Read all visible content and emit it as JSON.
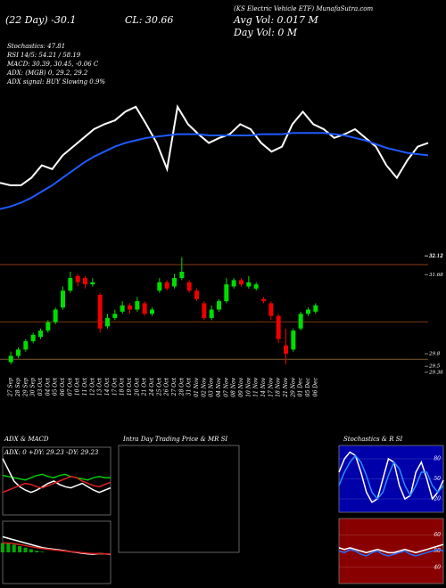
{
  "header": {
    "lines": [
      "(22 Day) -30.1",
      "CL: 30.66",
      "Avg Vol: 0.017 M",
      "Day Vol: 0 M",
      "Stochastics: 47.81",
      "RSI 14/5: 54.21 / 58.19",
      "MACD: 30.39, 30.45, -0.06 C",
      "ADX: (MGB) 0, 29.2, 29.2",
      "ADX signal: BUY Slowing 0.9%",
      "(KS Electric Vehicle ETF) MunafaSutra.com"
    ]
  },
  "chart_data": [
    {
      "type": "candlestick",
      "categories": [
        "27 Sep",
        "28 Sep",
        "29 Sep",
        "30 Sep",
        "03 Oct",
        "04 Oct",
        "05 Oct",
        "06 Oct",
        "07 Oct",
        "10 Oct",
        "11 Oct",
        "12 Oct",
        "13 Oct",
        "14 Oct",
        "17 Oct",
        "18 Oct",
        "19 Oct",
        "20 Oct",
        "21 Oct",
        "24 Oct",
        "25 Oct",
        "26 Oct",
        "27 Oct",
        "28 Oct",
        "31 Oct",
        "01 Nov",
        "02 Nov",
        "03 Nov",
        "04 Nov",
        "07 Nov",
        "08 Nov",
        "09 Nov",
        "10 Nov",
        "11 Nov",
        "14 Nov",
        "17 Nov",
        "18 Nov",
        "21 Nov",
        "29 Nov",
        "01 Dec",
        "05 Dec",
        "06 Dec"
      ],
      "open": [
        29.6,
        29.75,
        29.9,
        30.1,
        30.2,
        30.35,
        30.55,
        30.9,
        31.3,
        31.65,
        31.6,
        31.45,
        31.2,
        30.45,
        30.65,
        30.8,
        30.95,
        30.85,
        31.0,
        30.75,
        31.3,
        31.5,
        31.4,
        31.6,
        31.5,
        31.3,
        31.0,
        30.65,
        30.85,
        31.05,
        31.4,
        31.55,
        31.4,
        31.35,
        31.1,
        31.0,
        30.7,
        30.0,
        29.9,
        30.4,
        30.75,
        30.8
      ],
      "high": [
        29.85,
        29.95,
        30.15,
        30.3,
        30.4,
        30.6,
        30.9,
        31.4,
        31.75,
        31.7,
        31.65,
        31.6,
        31.25,
        30.75,
        30.85,
        31.05,
        31.0,
        31.15,
        31.05,
        30.9,
        31.6,
        31.55,
        31.7,
        32.1,
        31.55,
        31.35,
        31.05,
        30.95,
        31.1,
        31.6,
        31.6,
        31.6,
        31.65,
        31.5,
        31.15,
        31.05,
        30.75,
        30.4,
        30.4,
        30.8,
        30.9,
        31.0
      ],
      "low": [
        29.55,
        29.7,
        29.85,
        30.05,
        30.15,
        30.3,
        30.5,
        30.85,
        31.25,
        31.4,
        31.35,
        31.4,
        30.3,
        30.4,
        30.6,
        30.75,
        30.75,
        30.8,
        30.7,
        30.7,
        31.25,
        31.3,
        31.35,
        31.55,
        31.25,
        31.05,
        30.6,
        30.6,
        30.8,
        31.0,
        31.35,
        31.4,
        31.35,
        31.3,
        31.0,
        30.6,
        30.05,
        29.55,
        29.85,
        30.35,
        30.7,
        30.75
      ],
      "close": [
        29.75,
        29.9,
        30.1,
        30.25,
        30.35,
        30.55,
        30.85,
        31.3,
        31.6,
        31.5,
        31.45,
        31.5,
        30.4,
        30.65,
        30.75,
        30.95,
        30.85,
        31.05,
        30.75,
        30.85,
        31.5,
        31.35,
        31.6,
        31.75,
        31.3,
        31.1,
        30.65,
        30.85,
        31.05,
        31.45,
        31.55,
        31.45,
        31.5,
        31.45,
        31.05,
        30.7,
        30.15,
        29.8,
        30.35,
        30.75,
        30.85,
        30.95
      ],
      "up_color": "#00dd00",
      "down_color": "#ee0000",
      "ylim": [
        29.42,
        32.28
      ],
      "yticks": [
        32.13,
        32.12,
        31.68,
        29.8,
        29.5,
        29.36
      ],
      "levels": [
        {
          "value": 31.92,
          "color": "#8b3a1a"
        },
        {
          "value": 30.56,
          "color": "#7a3b10"
        },
        {
          "value": 29.67,
          "color": "#7a5a30"
        }
      ]
    },
    {
      "type": "line",
      "ylim": [
        0,
        100
      ],
      "series": [
        {
          "color": "#ffffff",
          "values": [
            32,
            30,
            30,
            36,
            46,
            43,
            54,
            61,
            68,
            75,
            79,
            82,
            89,
            93,
            79,
            64,
            43,
            93,
            79,
            71,
            64,
            68,
            71,
            79,
            75,
            64,
            57,
            61,
            79,
            89,
            79,
            75,
            68,
            71,
            75,
            68,
            61,
            46,
            36,
            50,
            61,
            64
          ]
        },
        {
          "color": "#1e5aff",
          "values": [
            11,
            13,
            16,
            20,
            25,
            30,
            36,
            42,
            48,
            53,
            57,
            61,
            64,
            66,
            68,
            69,
            70,
            71,
            71,
            71,
            70,
            70,
            70,
            70,
            70,
            71,
            71,
            71,
            72,
            72,
            72,
            72,
            71,
            70,
            68,
            66,
            63,
            60,
            58,
            56,
            55,
            54
          ]
        }
      ]
    },
    {
      "type": "line",
      "title": "ADX & MACD",
      "subtitle": "ADX: 0 +DY: 29.23 -DY: 29.23",
      "ylim": [
        0,
        60
      ],
      "background": "#000000",
      "series": [
        {
          "color": "#00cc00",
          "values": [
            35,
            34,
            33,
            32,
            31,
            33,
            35,
            36,
            34,
            33,
            35,
            36,
            34,
            33,
            32,
            31,
            33,
            34,
            33,
            33
          ]
        },
        {
          "color": "#ffffff",
          "values": [
            50,
            40,
            30,
            25,
            22,
            20,
            22,
            25,
            28,
            30,
            27,
            25,
            24,
            26,
            28,
            25,
            22,
            20,
            22,
            24
          ]
        },
        {
          "color": "#dd2222",
          "values": [
            20,
            22,
            24,
            26,
            28,
            27,
            25,
            24,
            26,
            28,
            30,
            32,
            34,
            33,
            30,
            28,
            26,
            25,
            27,
            29
          ]
        }
      ]
    },
    {
      "type": "macd",
      "ylim": [
        -1,
        1
      ],
      "background": "#000000",
      "hist_color": "#00aa00",
      "histogram": [
        0.3,
        0.3,
        0.25,
        0.2,
        0.15,
        0.1,
        0.05,
        0.02,
        0,
        0,
        0,
        0,
        0,
        0,
        0,
        0,
        0,
        0,
        0,
        0
      ],
      "series": [
        {
          "color": "#ffffff",
          "values": [
            0.5,
            0.45,
            0.4,
            0.35,
            0.3,
            0.25,
            0.2,
            0.15,
            0.12,
            0.1,
            0.08,
            0.05,
            0.02,
            0,
            -0.03,
            -0.05,
            -0.06,
            -0.04,
            -0.05,
            -0.06
          ]
        },
        {
          "color": "#dd2222",
          "values": [
            0.3,
            0.3,
            0.28,
            0.25,
            0.22,
            0.18,
            0.15,
            0.12,
            0.1,
            0.08,
            0.06,
            0.04,
            0.02,
            0.01,
            -0.01,
            -0.03,
            -0.04,
            -0.04,
            -0.05,
            -0.05
          ]
        }
      ]
    },
    {
      "type": "empty",
      "title": "Intra Day Trading Price & MR SI",
      "background": "#000000"
    },
    {
      "type": "line",
      "title": "Stochastics & R SI",
      "ylim": [
        0,
        100
      ],
      "yticks": [
        80,
        50,
        20
      ],
      "background": "#0000aa",
      "series": [
        {
          "color": "#ffffff",
          "values": [
            60,
            80,
            90,
            85,
            60,
            30,
            15,
            20,
            50,
            80,
            75,
            40,
            20,
            25,
            60,
            75,
            50,
            20,
            30,
            48
          ]
        },
        {
          "color": "#2a8cff",
          "values": [
            40,
            60,
            75,
            85,
            75,
            55,
            30,
            20,
            30,
            55,
            75,
            65,
            40,
            25,
            40,
            60,
            60,
            40,
            30,
            40
          ]
        }
      ]
    },
    {
      "type": "line",
      "ylim": [
        30,
        70
      ],
      "yticks": [
        60,
        50,
        40
      ],
      "background": "#880000",
      "series": [
        {
          "color": "#2a6cff",
          "values": [
            50,
            49,
            51,
            50,
            48,
            47,
            49,
            50,
            48,
            47,
            48,
            49,
            50,
            48,
            47,
            48,
            49,
            50,
            51,
            50
          ]
        },
        {
          "color": "#ffffff",
          "values": [
            52,
            51,
            52,
            51,
            50,
            49,
            50,
            51,
            50,
            49,
            49,
            50,
            51,
            50,
            49,
            50,
            51,
            52,
            53,
            54
          ]
        }
      ]
    }
  ]
}
